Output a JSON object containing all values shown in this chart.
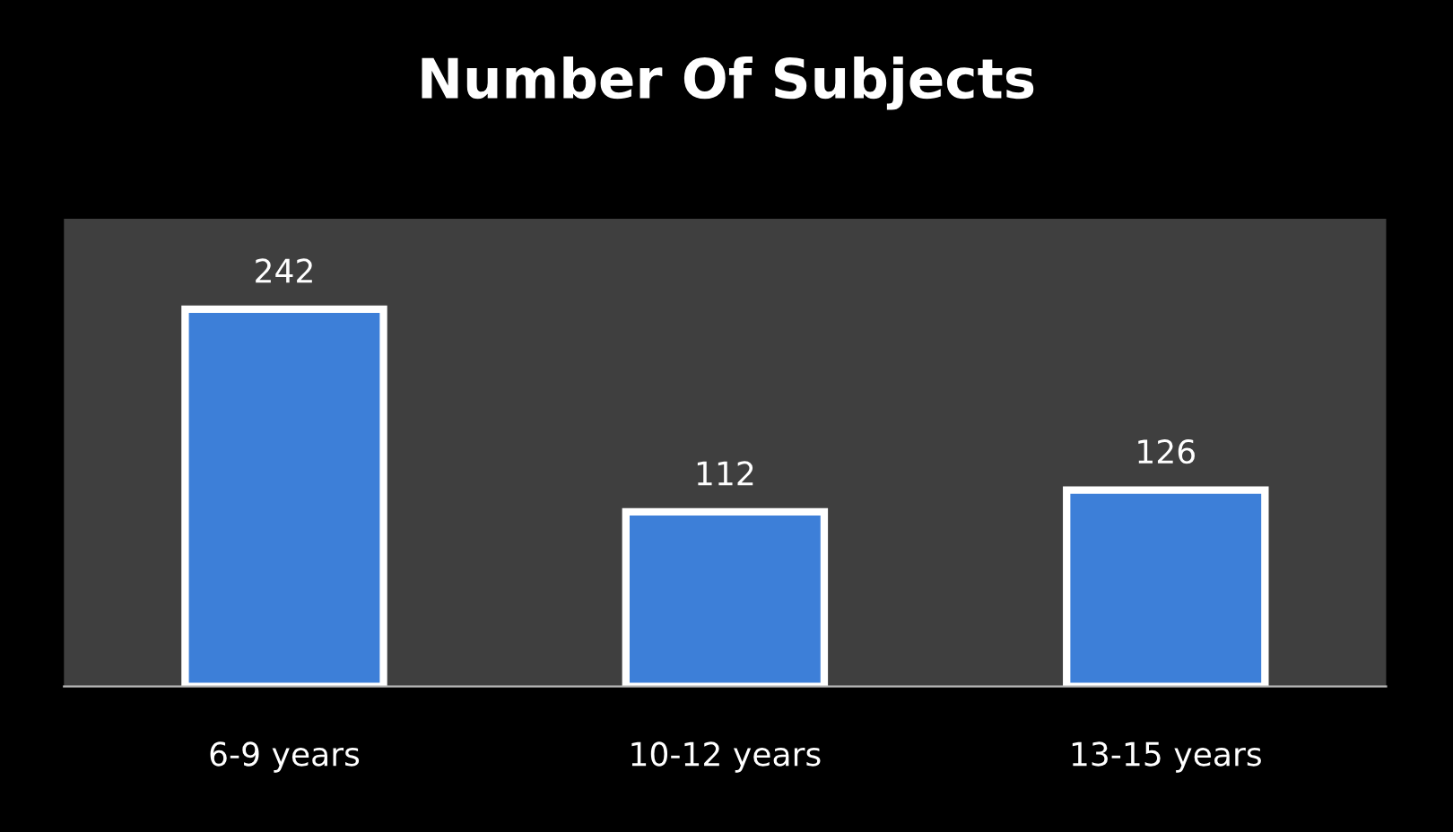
{
  "chart_data": {
    "type": "bar",
    "title": "Number Of Subjects",
    "categories": [
      "6-9 years",
      "10-12 years",
      "13-15 years"
    ],
    "values": [
      242,
      112,
      126
    ],
    "color": "#3d7fd8",
    "ylim": [
      0,
      300
    ],
    "data_labels": true,
    "grid": false,
    "legend": false
  }
}
